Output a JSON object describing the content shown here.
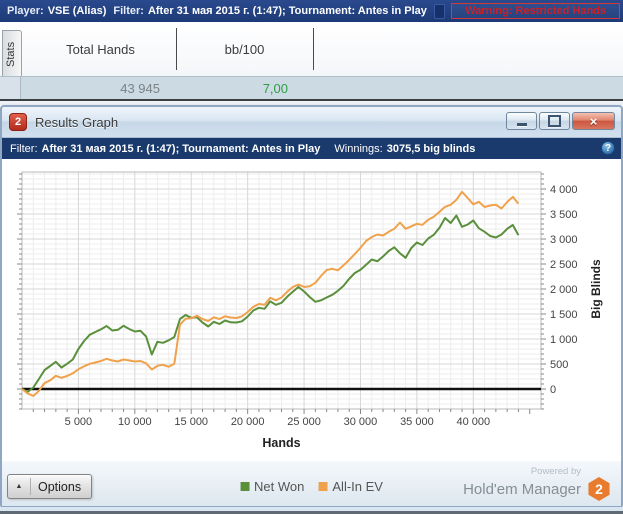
{
  "top_bar": {
    "player_label": "Player:",
    "player_value": "VSE (Alias)",
    "filter_label": "Filter:",
    "filter_value": "After 31 мая 2015 г. (1:47); Tournament: Antes in Play",
    "warning": "Warning: Restricted Hands"
  },
  "stats_panel": {
    "tab_label": "Stats",
    "columns": [
      "Total Hands",
      "bb/100"
    ],
    "row": [
      "43 945",
      "7,00"
    ]
  },
  "window": {
    "icon_badge": "2",
    "title": "Results Graph",
    "icons": {
      "close": "×",
      "help": "?",
      "options_arrow": "▲"
    },
    "filter_bar": {
      "filter_label": "Filter:",
      "filter_value": "After 31 мая 2015 г. (1:47); Tournament: Antes in Play",
      "winnings_label": "Winnings:",
      "winnings_value": "3075,5 big blinds"
    },
    "options_label": "Options",
    "powered_by": "Powered by",
    "brand": "Hold'em Manager",
    "brand_badge": "2"
  },
  "colors": {
    "net_won_green": "#5a8f3c",
    "all_in_ev_orange": "#f0a14c",
    "value_green": "#2f9e43",
    "warning_red": "#cc2126",
    "top_bar_navy": "#1d3a78",
    "filter_bar_navy": "#1a3a6d",
    "brand_orange": "#e87b2e"
  },
  "chart_data": {
    "type": "line",
    "title": "",
    "xlabel": "Hands",
    "ylabel": "Big Blinds",
    "xlim": [
      0,
      46000
    ],
    "ylim": [
      -400,
      4340
    ],
    "grid": true,
    "legend_position": "bottom",
    "x_ticks": [
      5000,
      10000,
      15000,
      20000,
      25000,
      30000,
      35000,
      40000
    ],
    "x_tick_labels": [
      "5 000",
      "10 000",
      "15 000",
      "20 000",
      "25 000",
      "30 000",
      "35 000",
      "40 000"
    ],
    "y_ticks": [
      0,
      500,
      1000,
      1500,
      2000,
      2500,
      3000,
      3500,
      4000
    ],
    "y_tick_labels": [
      "0",
      "500",
      "1 000",
      "1 500",
      "2 000",
      "2 500",
      "3 000",
      "3 500",
      "4 000"
    ],
    "x": [
      0,
      500,
      1000,
      1500,
      2000,
      2500,
      3000,
      3500,
      4000,
      4500,
      5000,
      5500,
      6000,
      6500,
      7000,
      7500,
      8000,
      8500,
      9000,
      9500,
      10000,
      10500,
      11000,
      11500,
      12000,
      12500,
      13000,
      13500,
      14000,
      14500,
      15000,
      15500,
      16000,
      16500,
      17000,
      17500,
      18000,
      18500,
      19000,
      19500,
      20000,
      20500,
      21000,
      21500,
      22000,
      22500,
      23000,
      23500,
      24000,
      24500,
      25000,
      25500,
      26000,
      26500,
      27000,
      27500,
      28000,
      28500,
      29000,
      29500,
      30000,
      30500,
      31000,
      31500,
      32000,
      32500,
      33000,
      33500,
      34000,
      34500,
      35000,
      35500,
      36000,
      36500,
      37000,
      37500,
      38000,
      38500,
      39000,
      39500,
      40000,
      40500,
      41000,
      41500,
      42000,
      42500,
      43000,
      43500,
      44000
    ],
    "series": [
      {
        "name": "Net Won",
        "color": "#5a8f3c",
        "values": [
          0,
          -60,
          30,
          200,
          380,
          460,
          545,
          430,
          505,
          590,
          800,
          960,
          1085,
          1140,
          1195,
          1260,
          1170,
          1185,
          1265,
          1200,
          1150,
          1165,
          1050,
          690,
          945,
          925,
          975,
          1040,
          1400,
          1480,
          1425,
          1435,
          1330,
          1250,
          1345,
          1300,
          1370,
          1335,
          1330,
          1355,
          1450,
          1570,
          1625,
          1605,
          1755,
          1685,
          1725,
          1845,
          1945,
          2040,
          1950,
          1840,
          1745,
          1775,
          1830,
          1885,
          1965,
          2065,
          2205,
          2320,
          2385,
          2485,
          2590,
          2555,
          2650,
          2760,
          2835,
          2715,
          2625,
          2820,
          2930,
          2880,
          3010,
          3085,
          3225,
          3420,
          3320,
          3470,
          3245,
          3290,
          3370,
          3215,
          3145,
          3060,
          3030,
          3090,
          3205,
          3280,
          3075.5
        ]
      },
      {
        "name": "All-In EV",
        "color": "#f0a14c",
        "values": [
          0,
          -85,
          -140,
          -35,
          120,
          175,
          265,
          225,
          260,
          315,
          395,
          455,
          505,
          530,
          560,
          605,
          570,
          550,
          590,
          570,
          550,
          560,
          515,
          390,
          465,
          485,
          445,
          505,
          1290,
          1405,
          1415,
          1465,
          1400,
          1360,
          1435,
          1400,
          1455,
          1430,
          1420,
          1455,
          1540,
          1645,
          1700,
          1685,
          1825,
          1775,
          1830,
          1945,
          2040,
          2090,
          2040,
          2055,
          2125,
          2260,
          2380,
          2405,
          2375,
          2475,
          2585,
          2700,
          2825,
          2960,
          3040,
          3090,
          3070,
          3145,
          3205,
          3330,
          3205,
          3255,
          3305,
          3285,
          3385,
          3445,
          3545,
          3645,
          3685,
          3785,
          3945,
          3820,
          3695,
          3745,
          3640,
          3670,
          3685,
          3610,
          3740,
          3845,
          3705
        ]
      }
    ]
  }
}
